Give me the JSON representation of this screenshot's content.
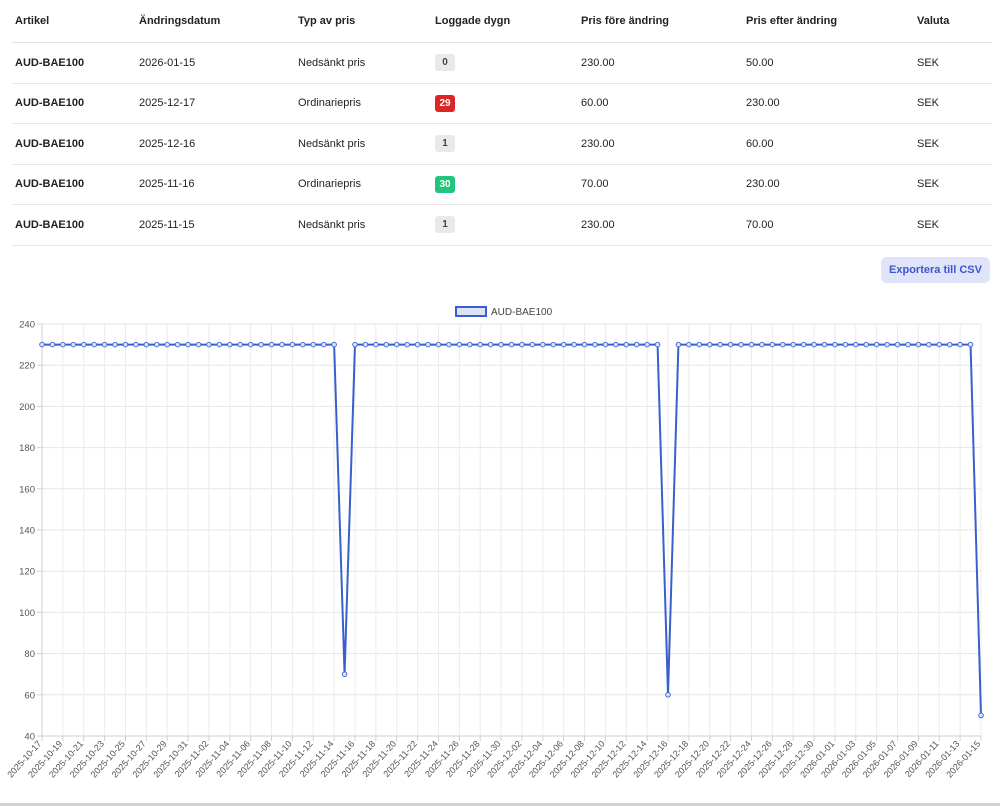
{
  "table": {
    "headers": [
      "Artikel",
      "Ändringsdatum",
      "Typ av pris",
      "Loggade dygn",
      "Pris före ändring",
      "Pris efter ändring",
      "Valuta"
    ],
    "rows": [
      {
        "artikel": "AUD-BAE100",
        "datum": "2026-01-15",
        "typ": "Nedsänkt pris",
        "dygn": "0",
        "dygn_color": "grey",
        "fore": "230.00",
        "efter": "50.00",
        "valuta": "SEK"
      },
      {
        "artikel": "AUD-BAE100",
        "datum": "2025-12-17",
        "typ": "Ordinariepris",
        "dygn": "29",
        "dygn_color": "red",
        "fore": "60.00",
        "efter": "230.00",
        "valuta": "SEK"
      },
      {
        "artikel": "AUD-BAE100",
        "datum": "2025-12-16",
        "typ": "Nedsänkt pris",
        "dygn": "1",
        "dygn_color": "grey",
        "fore": "230.00",
        "efter": "60.00",
        "valuta": "SEK"
      },
      {
        "artikel": "AUD-BAE100",
        "datum": "2025-11-16",
        "typ": "Ordinariepris",
        "dygn": "30",
        "dygn_color": "green",
        "fore": "70.00",
        "efter": "230.00",
        "valuta": "SEK"
      },
      {
        "artikel": "AUD-BAE100",
        "datum": "2025-11-15",
        "typ": "Nedsänkt pris",
        "dygn": "1",
        "dygn_color": "grey",
        "fore": "230.00",
        "efter": "70.00",
        "valuta": "SEK"
      }
    ]
  },
  "export_button": {
    "label": "Exportera till CSV"
  },
  "chart_data": {
    "type": "line",
    "legend": {
      "label": "AUD-BAE100",
      "position": "top-center"
    },
    "series": [
      {
        "name": "AUD-BAE100",
        "color": "#3a5fcd",
        "points": [
          [
            "2025-10-17",
            230
          ],
          [
            "2025-10-18",
            230
          ],
          [
            "2025-10-19",
            230
          ],
          [
            "2025-10-20",
            230
          ],
          [
            "2025-10-21",
            230
          ],
          [
            "2025-10-22",
            230
          ],
          [
            "2025-10-23",
            230
          ],
          [
            "2025-10-24",
            230
          ],
          [
            "2025-10-25",
            230
          ],
          [
            "2025-10-26",
            230
          ],
          [
            "2025-10-27",
            230
          ],
          [
            "2025-10-28",
            230
          ],
          [
            "2025-10-29",
            230
          ],
          [
            "2025-10-30",
            230
          ],
          [
            "2025-10-31",
            230
          ],
          [
            "2025-11-01",
            230
          ],
          [
            "2025-11-02",
            230
          ],
          [
            "2025-11-03",
            230
          ],
          [
            "2025-11-04",
            230
          ],
          [
            "2025-11-05",
            230
          ],
          [
            "2025-11-06",
            230
          ],
          [
            "2025-11-07",
            230
          ],
          [
            "2025-11-08",
            230
          ],
          [
            "2025-11-09",
            230
          ],
          [
            "2025-11-10",
            230
          ],
          [
            "2025-11-11",
            230
          ],
          [
            "2025-11-12",
            230
          ],
          [
            "2025-11-13",
            230
          ],
          [
            "2025-11-14",
            230
          ],
          [
            "2025-11-15",
            70
          ],
          [
            "2025-11-16",
            230
          ],
          [
            "2025-11-17",
            230
          ],
          [
            "2025-11-18",
            230
          ],
          [
            "2025-11-19",
            230
          ],
          [
            "2025-11-20",
            230
          ],
          [
            "2025-11-21",
            230
          ],
          [
            "2025-11-22",
            230
          ],
          [
            "2025-11-23",
            230
          ],
          [
            "2025-11-24",
            230
          ],
          [
            "2025-11-25",
            230
          ],
          [
            "2025-11-26",
            230
          ],
          [
            "2025-11-27",
            230
          ],
          [
            "2025-11-28",
            230
          ],
          [
            "2025-11-29",
            230
          ],
          [
            "2025-11-30",
            230
          ],
          [
            "2025-12-01",
            230
          ],
          [
            "2025-12-02",
            230
          ],
          [
            "2025-12-03",
            230
          ],
          [
            "2025-12-04",
            230
          ],
          [
            "2025-12-05",
            230
          ],
          [
            "2025-12-06",
            230
          ],
          [
            "2025-12-07",
            230
          ],
          [
            "2025-12-08",
            230
          ],
          [
            "2025-12-09",
            230
          ],
          [
            "2025-12-10",
            230
          ],
          [
            "2025-12-11",
            230
          ],
          [
            "2025-12-12",
            230
          ],
          [
            "2025-12-13",
            230
          ],
          [
            "2025-12-14",
            230
          ],
          [
            "2025-12-15",
            230
          ],
          [
            "2025-12-16",
            60
          ],
          [
            "2025-12-17",
            230
          ],
          [
            "2025-12-18",
            230
          ],
          [
            "2025-12-19",
            230
          ],
          [
            "2025-12-20",
            230
          ],
          [
            "2025-12-21",
            230
          ],
          [
            "2025-12-22",
            230
          ],
          [
            "2025-12-23",
            230
          ],
          [
            "2025-12-24",
            230
          ],
          [
            "2025-12-25",
            230
          ],
          [
            "2025-12-26",
            230
          ],
          [
            "2025-12-27",
            230
          ],
          [
            "2025-12-28",
            230
          ],
          [
            "2025-12-29",
            230
          ],
          [
            "2025-12-30",
            230
          ],
          [
            "2025-12-31",
            230
          ],
          [
            "2026-01-01",
            230
          ],
          [
            "2026-01-02",
            230
          ],
          [
            "2026-01-03",
            230
          ],
          [
            "2026-01-04",
            230
          ],
          [
            "2026-01-05",
            230
          ],
          [
            "2026-01-06",
            230
          ],
          [
            "2026-01-07",
            230
          ],
          [
            "2026-01-08",
            230
          ],
          [
            "2026-01-09",
            230
          ],
          [
            "2026-01-10",
            230
          ],
          [
            "2026-01-11",
            230
          ],
          [
            "2026-01-12",
            230
          ],
          [
            "2026-01-13",
            230
          ],
          [
            "2026-01-14",
            230
          ],
          [
            "2026-01-15",
            50
          ]
        ]
      }
    ],
    "x_tick_labels": [
      "2025-10-17",
      "2025-10-19",
      "2025-10-21",
      "2025-10-23",
      "2025-10-25",
      "2025-10-27",
      "2025-10-29",
      "2025-10-31",
      "2025-11-02",
      "2025-11-04",
      "2025-11-06",
      "2025-11-08",
      "2025-11-10",
      "2025-11-12",
      "2025-11-14",
      "2025-11-16",
      "2025-11-18",
      "2025-11-20",
      "2025-11-22",
      "2025-11-24",
      "2025-11-26",
      "2025-11-28",
      "2025-11-30",
      "2025-12-02",
      "2025-12-04",
      "2025-12-06",
      "2025-12-08",
      "2025-12-10",
      "2025-12-12",
      "2025-12-14",
      "2025-12-16",
      "2025-12-18",
      "2025-12-20",
      "2025-12-22",
      "2025-12-24",
      "2025-12-26",
      "2025-12-28",
      "2025-12-30",
      "2026-01-01",
      "2026-01-03",
      "2026-01-05",
      "2026-01-07",
      "2026-01-09",
      "2026-01-11",
      "2026-01-13",
      "2026-01-15"
    ],
    "y_ticks": [
      40,
      60,
      80,
      100,
      120,
      140,
      160,
      180,
      200,
      220,
      240
    ],
    "ylim": [
      40,
      240
    ],
    "grid": true
  }
}
